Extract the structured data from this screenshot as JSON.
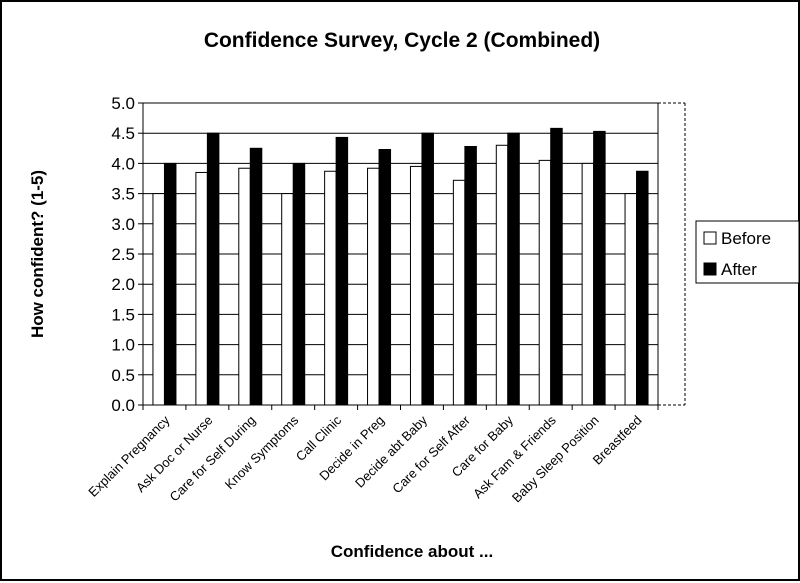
{
  "chart_data": {
    "type": "bar",
    "title": "Confidence Survey, Cycle 2 (Combined)",
    "xlabel": "Confidence about ...",
    "ylabel": "How confident? (1-5)",
    "ylim": [
      0,
      5
    ],
    "yticks": [
      "0.0",
      "0.5",
      "1.0",
      "1.5",
      "2.0",
      "2.5",
      "3.0",
      "3.5",
      "4.0",
      "4.5",
      "5.0"
    ],
    "grid": "horizontal",
    "legend_position": "right",
    "categories": [
      "Explain Pregnancy",
      "Ask Doc or Nurse",
      "Care for Self During",
      "Know Symptoms",
      "Call Clinic",
      "Decide in Preg",
      "Decide abt Baby",
      "Care for Self After",
      "Care for Baby",
      "Ask Fam & Friends",
      "Baby Sleep Position",
      "Breastfeed"
    ],
    "series": [
      {
        "name": "Before",
        "color": "#ffffff",
        "values": [
          3.5,
          3.85,
          3.92,
          3.5,
          3.87,
          3.92,
          3.95,
          3.72,
          4.3,
          4.05,
          4.0,
          3.5
        ]
      },
      {
        "name": "After",
        "color": "#000000",
        "values": [
          4.0,
          4.5,
          4.25,
          4.0,
          4.43,
          4.23,
          4.5,
          4.28,
          4.5,
          4.58,
          4.53,
          3.87
        ]
      }
    ]
  }
}
